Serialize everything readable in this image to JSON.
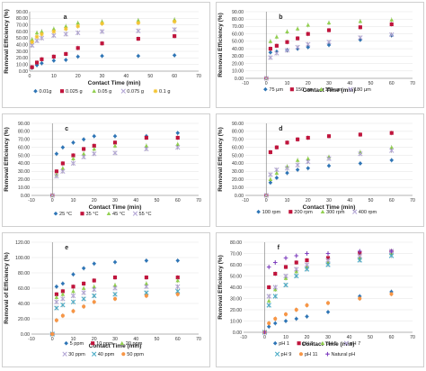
{
  "chart_data": [
    {
      "type": "scatter",
      "panel_label": "a",
      "xlabel": "Contact Time (min)",
      "ylabel": "Removal Efficiency (%)",
      "xlim": [
        0,
        70
      ],
      "ylim": [
        0,
        90
      ],
      "xticks": [
        0,
        10,
        20,
        30,
        40,
        50,
        60,
        70
      ],
      "yticks": [
        0,
        10,
        20,
        30,
        40,
        50,
        60,
        70,
        80,
        90
      ],
      "ytick_labels": [
        "0.00",
        "10.00",
        "20.00",
        "30.00",
        "40.00",
        "50.00",
        "60.00",
        "70.00",
        "80.00",
        "90.00"
      ],
      "legend_position": "bottom",
      "x": [
        1,
        3,
        5,
        10,
        15,
        20,
        30,
        45,
        60
      ],
      "series": [
        {
          "name": "0.01g",
          "color": "#2e75b6",
          "marker": "diamond",
          "values": [
            5,
            9,
            12,
            16,
            17,
            22,
            23,
            23,
            24
          ]
        },
        {
          "name": "0.025 g",
          "color": "#c0143c",
          "marker": "square",
          "values": [
            6,
            13,
            18,
            22,
            26,
            35,
            42,
            49,
            53
          ]
        },
        {
          "name": "0.05 g",
          "color": "#92d050",
          "marker": "triangle",
          "values": [
            48,
            58,
            60,
            64,
            68,
            73,
            75,
            77,
            78
          ]
        },
        {
          "name": "0.075 g",
          "color": "#b4a7d6",
          "marker": "cross",
          "values": [
            39,
            46,
            50,
            54,
            56,
            58,
            60,
            61,
            63
          ]
        },
        {
          "name": "0.1 g",
          "color": "#f4c430",
          "marker": "star",
          "values": [
            44,
            52,
            56,
            60,
            64,
            68,
            72,
            73,
            75
          ]
        }
      ]
    },
    {
      "type": "scatter",
      "panel_label": "b",
      "xlabel": "Contact Time (min)",
      "ylabel": "Removal Efficiency (%)",
      "xlim": [
        -10,
        70
      ],
      "ylim": [
        0,
        90
      ],
      "xticks": [
        -10,
        0,
        10,
        20,
        30,
        40,
        50,
        60,
        70
      ],
      "yticks": [
        0,
        10,
        20,
        30,
        40,
        50,
        60,
        70,
        80,
        90
      ],
      "ytick_labels": [
        "0.00",
        "10.00",
        "20.00",
        "30.00",
        "40.00",
        "50.00",
        "60.00",
        "70.00",
        "80.00",
        "90.00"
      ],
      "legend_position": "bottom",
      "x": [
        0,
        2,
        5,
        10,
        15,
        20,
        30,
        45,
        60
      ],
      "series": [
        {
          "name": "75 µm",
          "color": "#2e75b6",
          "marker": "diamond",
          "values": [
            0,
            35,
            36,
            38,
            40,
            42,
            45,
            52,
            58
          ]
        },
        {
          "name": "150 µm",
          "color": "#c0143c",
          "marker": "square",
          "values": [
            0,
            40,
            44,
            49,
            54,
            60,
            65,
            69,
            73
          ]
        },
        {
          "name": "180 µm",
          "color": "#92d050",
          "marker": "triangle",
          "values": [
            0,
            50,
            56,
            63,
            67,
            72,
            75,
            77,
            79
          ]
        },
        {
          "name": "180 µm",
          "color": "#b4a7d6",
          "marker": "cross",
          "values": [
            0,
            28,
            34,
            38,
            42,
            46,
            49,
            55,
            59
          ]
        }
      ]
    },
    {
      "type": "scatter",
      "panel_label": "c",
      "xlabel": "Contact Time (min)",
      "ylabel": "Removal Efficiency (%)",
      "xlim": [
        -10,
        70
      ],
      "ylim": [
        0,
        90
      ],
      "xticks": [
        -10,
        0,
        10,
        20,
        30,
        40,
        50,
        60,
        70
      ],
      "yticks": [
        0,
        10,
        20,
        30,
        40,
        50,
        60,
        70,
        80,
        90
      ],
      "ytick_labels": [
        "0.00",
        "10.00",
        "20.00",
        "30.00",
        "40.00",
        "50.00",
        "60.00",
        "70.00",
        "80.00",
        "90.00"
      ],
      "legend_position": "bottom",
      "x": [
        0,
        2,
        5,
        10,
        15,
        20,
        30,
        45,
        60
      ],
      "series": [
        {
          "name": "25 °C",
          "color": "#2e75b6",
          "marker": "diamond",
          "values": [
            0,
            52,
            60,
            66,
            70,
            74,
            74,
            74,
            78
          ]
        },
        {
          "name": "35 °C",
          "color": "#c0143c",
          "marker": "square",
          "values": [
            0,
            30,
            40,
            50,
            58,
            62,
            66,
            72,
            72
          ]
        },
        {
          "name": "45 °C",
          "color": "#92d050",
          "marker": "triangle",
          "values": [
            0,
            26,
            34,
            46,
            52,
            58,
            62,
            62,
            64
          ]
        },
        {
          "name": "55 °C",
          "color": "#b4a7d6",
          "marker": "cross",
          "values": [
            0,
            24,
            30,
            40,
            48,
            52,
            53,
            58,
            60
          ]
        }
      ]
    },
    {
      "type": "scatter",
      "panel_label": "d",
      "xlabel": "Contact Time (min)",
      "ylabel": "Removal Efficiency (%)",
      "xlim": [
        -10,
        70
      ],
      "ylim": [
        0,
        90
      ],
      "xticks": [
        -10,
        0,
        10,
        20,
        30,
        40,
        50,
        60,
        70
      ],
      "yticks": [
        0,
        10,
        20,
        30,
        40,
        50,
        60,
        70,
        80,
        90
      ],
      "ytick_labels": [
        "0.00",
        "10.00",
        "20.00",
        "30.00",
        "40.00",
        "50.00",
        "60.00",
        "70.00",
        "80.00",
        "90.00"
      ],
      "legend_position": "bottom",
      "x": [
        0,
        2,
        5,
        10,
        15,
        20,
        30,
        45,
        60
      ],
      "series": [
        {
          "name": "100 rpm",
          "color": "#2e75b6",
          "marker": "diamond",
          "values": [
            0,
            16,
            22,
            28,
            32,
            34,
            37,
            40,
            44
          ]
        },
        {
          "name": "200 rpm",
          "color": "#c0143c",
          "marker": "square",
          "values": [
            0,
            54,
            60,
            66,
            70,
            72,
            74,
            76,
            78
          ]
        },
        {
          "name": "300 rpm",
          "color": "#92d050",
          "marker": "triangle",
          "values": [
            0,
            20,
            28,
            36,
            44,
            46,
            48,
            54,
            60
          ]
        },
        {
          "name": "400 rpm",
          "color": "#b4a7d6",
          "marker": "cross",
          "values": [
            0,
            26,
            32,
            34,
            38,
            42,
            46,
            52,
            56
          ]
        }
      ]
    },
    {
      "type": "scatter",
      "panel_label": "e",
      "xlabel": "Contact Time (min)",
      "ylabel": "Removal of Efficiency (%)",
      "xlim": [
        -10,
        70
      ],
      "ylim": [
        0,
        120
      ],
      "xticks": [
        -10,
        0,
        10,
        20,
        30,
        40,
        50,
        60,
        70
      ],
      "yticks": [
        0,
        20,
        40,
        60,
        80,
        100,
        120
      ],
      "ytick_labels": [
        "0.00",
        "20.00",
        "40.00",
        "60.00",
        "80.00",
        "100.00",
        "120.00"
      ],
      "legend_position": "bottom",
      "x": [
        0,
        2,
        5,
        10,
        15,
        20,
        30,
        45,
        60
      ],
      "series": [
        {
          "name": "5 ppm",
          "color": "#2e75b6",
          "marker": "diamond",
          "values": [
            0,
            62,
            66,
            78,
            86,
            92,
            94,
            96,
            96
          ]
        },
        {
          "name": "10 ppm",
          "color": "#c0143c",
          "marker": "square",
          "values": [
            0,
            52,
            56,
            62,
            66,
            70,
            74,
            74,
            74
          ]
        },
        {
          "name": "20 ppm",
          "color": "#92d050",
          "marker": "triangle",
          "values": [
            0,
            48,
            52,
            56,
            60,
            62,
            64,
            66,
            70
          ]
        },
        {
          "name": "30 ppm",
          "color": "#b4a7d6",
          "marker": "cross",
          "values": [
            0,
            42,
            46,
            50,
            54,
            58,
            60,
            62,
            62
          ]
        },
        {
          "name": "40 ppm",
          "color": "#4bacc6",
          "marker": "x",
          "values": [
            0,
            34,
            38,
            42,
            46,
            50,
            52,
            54,
            56
          ]
        },
        {
          "name": "50 ppm",
          "color": "#f79646",
          "marker": "circle",
          "values": [
            0,
            18,
            24,
            30,
            36,
            42,
            46,
            50,
            52
          ]
        }
      ]
    },
    {
      "type": "scatter",
      "panel_label": "f",
      "xlabel": "Contact Time (min)",
      "ylabel": "Removal Efficiency (%)",
      "xlim": [
        -10,
        70
      ],
      "ylim": [
        0,
        80
      ],
      "xticks": [
        -10,
        0,
        10,
        20,
        30,
        40,
        50,
        60,
        70
      ],
      "yticks": [
        0,
        10,
        20,
        30,
        40,
        50,
        60,
        70,
        80
      ],
      "ytick_labels": [
        "0.00",
        "10.00",
        "20.00",
        "30.00",
        "40.00",
        "50.00",
        "60.00",
        "70.00",
        "80.00"
      ],
      "legend_position": "bottom",
      "x": [
        0,
        2,
        5,
        10,
        15,
        20,
        30,
        45,
        60
      ],
      "series": [
        {
          "name": "pH 1",
          "color": "#2e75b6",
          "marker": "diamond",
          "values": [
            0,
            5,
            8,
            10,
            12,
            14,
            18,
            32,
            36
          ]
        },
        {
          "name": "pH 3",
          "color": "#c0143c",
          "marker": "square",
          "values": [
            0,
            40,
            52,
            58,
            62,
            64,
            66,
            70,
            72
          ]
        },
        {
          "name": "pH 5",
          "color": "#92d050",
          "marker": "triangle",
          "values": [
            0,
            28,
            38,
            48,
            54,
            58,
            62,
            66,
            70
          ]
        },
        {
          "name": "pH 7",
          "color": "#b4a7d6",
          "marker": "cross",
          "values": [
            0,
            32,
            40,
            50,
            56,
            60,
            64,
            68,
            72
          ]
        },
        {
          "name": "pH 9",
          "color": "#4bacc6",
          "marker": "x",
          "values": [
            0,
            24,
            32,
            42,
            50,
            56,
            60,
            64,
            68
          ]
        },
        {
          "name": "pH 11",
          "color": "#f79646",
          "marker": "circle",
          "values": [
            0,
            8,
            12,
            16,
            20,
            24,
            26,
            30,
            34
          ]
        },
        {
          "name": "Natural pH",
          "color": "#7f3fbf",
          "marker": "plus",
          "values": [
            0,
            58,
            62,
            66,
            68,
            70,
            70,
            72,
            72
          ]
        }
      ]
    }
  ]
}
